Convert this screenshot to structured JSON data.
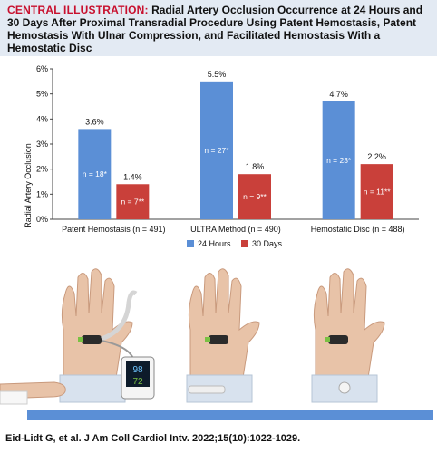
{
  "header": {
    "label": "CENTRAL ILLUSTRATION:",
    "title": "Radial Artery Occlusion Occurrence at 24 Hours and 30 Days After Proximal Transradial Procedure Using Patent Hemostasis, Patent Hemostasis With Ulnar Compression, and Facilitated Hemostasis With a Hemostatic Disc"
  },
  "chart_data": {
    "type": "bar",
    "ylabel": "Radial Artery Occlusion",
    "ylim": [
      0,
      6
    ],
    "yticks": [
      "0%",
      "1%",
      "2%",
      "3%",
      "4%",
      "5%",
      "6%"
    ],
    "categories": [
      "Patent Hemostasis (n = 491)",
      "ULTRA Method (n = 490)",
      "Hemostatic Disc (n = 488)"
    ],
    "series": [
      {
        "name": "24 Hours",
        "color": "#5b8fd6",
        "values": [
          3.6,
          5.5,
          4.7
        ],
        "labels": [
          "3.6%",
          "5.5%",
          "4.7%"
        ],
        "inner": [
          "n = 18*",
          "n = 27*",
          "n = 23*"
        ]
      },
      {
        "name": "30 Days",
        "color": "#c9403a",
        "values": [
          1.4,
          1.8,
          2.2
        ],
        "labels": [
          "1.4%",
          "1.8%",
          "2.2%"
        ],
        "inner": [
          "n = 7**",
          "n = 9**",
          "n = 11**"
        ]
      }
    ],
    "grid": false,
    "legend": "bottom-center"
  },
  "device": {
    "top_value": "98",
    "bottom_value": "72"
  },
  "citation": "Eid-Lidt G, et al. J Am Coll Cardiol Intv. 2022;15(10):1022-1029."
}
